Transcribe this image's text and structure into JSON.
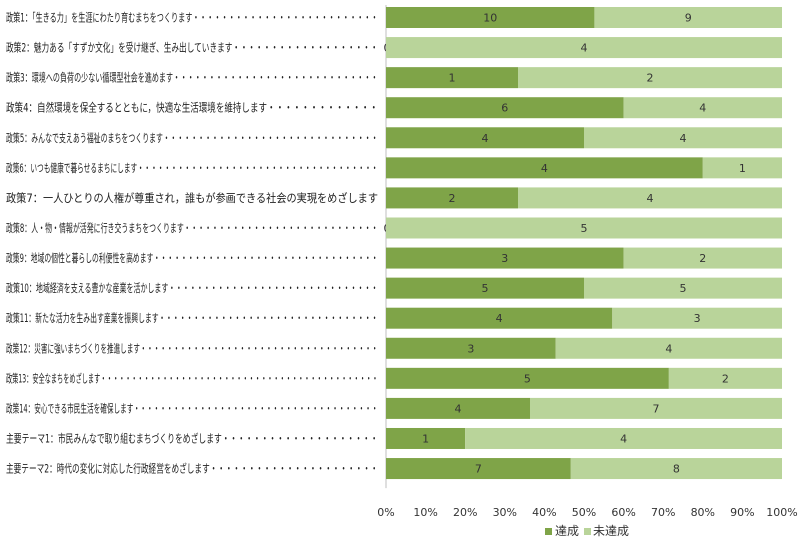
{
  "chart_data": {
    "type": "bar",
    "stacking": "percent",
    "orientation": "horizontal",
    "categories": [
      "政策1：「生きる力」を生涯にわたり育むまちをつくります・・・・・・・・・・・・・・・・・・・・・・・・・・",
      "政策2：魅力ある「すずか文化」を受け継ぎ、生み出していきます・・・・・・・・・・・・・・・・・・・",
      "政策3：環境への負荷の少ない循環型社会を進めます・・・・・・・・・・・・・・・・・・・・・・・・・・・・・",
      "政策4：自然環境を保全するとともに，快適な生活環境を維持します・・・・・・・・・・・・・",
      "政策5：みんなで支えあう福祉のまちをつくります・・・・・・・・・・・・・・・・・・・・・・・・・・・・・・・",
      "政策6：いつも健康で暮らせるまちにします・・・・・・・・・・・・・・・・・・・・・・・・・・・・・・・・・・・・",
      "政策7：一人ひとりの人権が尊重され，誰もが参画できる社会の実現をめざします",
      "政策8：人・物・情報が活発に行き交うまちをつくります・・・・・・・・・・・・・・・・・・・・・・・・・・・・",
      "政策9：地域の個性と暮らしの利便性を高めます・・・・・・・・・・・・・・・・・・・・・・・・・・・・・・・・・",
      "政策10：地域経済を支える豊かな産業を活かします・・・・・・・・・・・・・・・・・・・・・・・・・・・・・・",
      "政策11：新たな活力を生み出す産業を振興します・・・・・・・・・・・・・・・・・・・・・・・・・・・・・・・・",
      "政策12：災害に強いまちづくりを推進します・・・・・・・・・・・・・・・・・・・・・・・・・・・・・・・・・・・・",
      "政策13：安全なまちをめざします・・・・・・・・・・・・・・・・・・・・・・・・・・・・・・・・・・・・・・・・・・・・・",
      "政策14：安心できる市民生活を確保します・・・・・・・・・・・・・・・・・・・・・・・・・・・・・・・・・・・・・",
      "主要テーマ1：市民みんなで取り組むまちづくりをめざします・・・・・・・・・・・・・・・・・・・・",
      "主要テーマ2：時代の変化に対応した行政経営をめざします・・・・・・・・・・・・・・・・・・・・・・"
    ],
    "series": [
      {
        "name": "達成",
        "color": "#7fa448",
        "values": [
          10,
          0,
          1,
          6,
          4,
          4,
          2,
          0,
          3,
          5,
          4,
          3,
          5,
          4,
          1,
          7
        ]
      },
      {
        "name": "未達成",
        "color": "#b9d49a",
        "values": [
          9,
          4,
          2,
          4,
          4,
          1,
          4,
          5,
          2,
          5,
          3,
          4,
          2,
          7,
          4,
          8
        ]
      }
    ],
    "xlim": [
      0,
      100
    ],
    "x_ticks": [
      "0%",
      "10%",
      "20%",
      "30%",
      "40%",
      "50%",
      "60%",
      "70%",
      "80%",
      "90%",
      "100%"
    ],
    "grid": false,
    "legend_position": "bottom"
  }
}
